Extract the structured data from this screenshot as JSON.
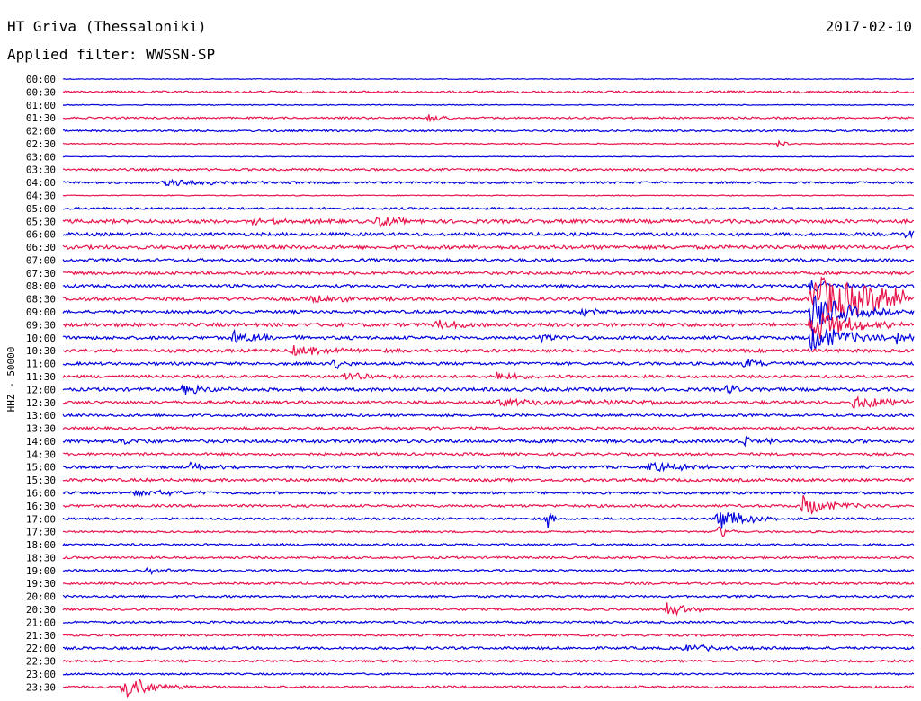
{
  "header": {
    "station": "HT Griva (Thessaloniki)",
    "date": "2017-02-10",
    "filter": "Applied filter: WWSSN-SP"
  },
  "colors": {
    "odd": "#e8134b",
    "even": "#0000dd"
  },
  "chart_data": {
    "type": "line",
    "title": "HT Griva (Thessaloniki)",
    "ylabel": "HHZ - 50000",
    "rows": [
      "00:00",
      "00:30",
      "01:00",
      "01:30",
      "02:00",
      "02:30",
      "03:00",
      "03:30",
      "04:00",
      "04:30",
      "05:00",
      "05:30",
      "06:00",
      "06:30",
      "07:00",
      "07:30",
      "08:00",
      "08:30",
      "09:00",
      "09:30",
      "10:00",
      "10:30",
      "11:00",
      "11:30",
      "12:00",
      "12:30",
      "13:00",
      "13:30",
      "14:00",
      "14:30",
      "15:00",
      "15:30",
      "16:00",
      "16:30",
      "17:00",
      "17:30",
      "18:00",
      "18:30",
      "19:00",
      "19:30",
      "20:00",
      "20:30",
      "21:00",
      "21:30",
      "22:00",
      "22:30",
      "23:00",
      "23:30"
    ],
    "row_noise": [
      0.4,
      1.2,
      0.5,
      1.0,
      1.0,
      0.6,
      0.4,
      1.2,
      1.2,
      0.5,
      1.2,
      2.0,
      1.8,
      2.0,
      1.6,
      1.6,
      1.6,
      1.8,
      1.6,
      2.0,
      1.8,
      1.8,
      1.6,
      1.6,
      1.8,
      1.6,
      1.4,
      1.4,
      1.8,
      1.4,
      1.6,
      1.6,
      1.4,
      1.4,
      1.2,
      1.0,
      1.2,
      1.2,
      1.2,
      1.2,
      1.2,
      1.2,
      1.2,
      1.2,
      1.4,
      1.2,
      1.0,
      1.2
    ],
    "events": [
      {
        "row": 3,
        "t": 0.43,
        "amp": 5,
        "dur": 0.02
      },
      {
        "row": 5,
        "t": 0.84,
        "amp": 5,
        "dur": 0.01
      },
      {
        "row": 8,
        "t": 0.12,
        "amp": 4,
        "dur": 0.06
      },
      {
        "row": 11,
        "t": 0.37,
        "amp": 7,
        "dur": 0.02
      },
      {
        "row": 11,
        "t": 0.22,
        "amp": 4,
        "dur": 0.04
      },
      {
        "row": 12,
        "t": 0.99,
        "amp": 6,
        "dur": 0.02
      },
      {
        "row": 16,
        "t": 0.88,
        "amp": 8,
        "dur": 0.03
      },
      {
        "row": 17,
        "t": 0.88,
        "amp": 26,
        "dur": 0.12
      },
      {
        "row": 17,
        "t": 0.29,
        "amp": 5,
        "dur": 0.04
      },
      {
        "row": 18,
        "t": 0.88,
        "amp": 22,
        "dur": 0.04
      },
      {
        "row": 18,
        "t": 0.61,
        "amp": 6,
        "dur": 0.02
      },
      {
        "row": 19,
        "t": 0.88,
        "amp": 20,
        "dur": 0.04
      },
      {
        "row": 19,
        "t": 0.44,
        "amp": 5,
        "dur": 0.03
      },
      {
        "row": 20,
        "t": 0.2,
        "amp": 8,
        "dur": 0.03
      },
      {
        "row": 20,
        "t": 0.88,
        "amp": 16,
        "dur": 0.04
      },
      {
        "row": 20,
        "t": 0.56,
        "amp": 5,
        "dur": 0.02
      },
      {
        "row": 20,
        "t": 0.98,
        "amp": 6,
        "dur": 0.01
      },
      {
        "row": 21,
        "t": 0.27,
        "amp": 5,
        "dur": 0.06
      },
      {
        "row": 22,
        "t": 0.32,
        "amp": 8,
        "dur": 0.01
      },
      {
        "row": 22,
        "t": 0.8,
        "amp": 5,
        "dur": 0.03
      },
      {
        "row": 23,
        "t": 0.51,
        "amp": 6,
        "dur": 0.02
      },
      {
        "row": 23,
        "t": 0.33,
        "amp": 4,
        "dur": 0.04
      },
      {
        "row": 24,
        "t": 0.14,
        "amp": 5,
        "dur": 0.04
      },
      {
        "row": 24,
        "t": 0.78,
        "amp": 5,
        "dur": 0.02
      },
      {
        "row": 25,
        "t": 0.93,
        "amp": 7,
        "dur": 0.06
      },
      {
        "row": 25,
        "t": 0.51,
        "amp": 4,
        "dur": 0.12
      },
      {
        "row": 27,
        "t": 0.43,
        "amp": 4,
        "dur": 0.01
      },
      {
        "row": 28,
        "t": 0.8,
        "amp": 6,
        "dur": 0.02
      },
      {
        "row": 28,
        "t": 0.07,
        "amp": 4,
        "dur": 0.02
      },
      {
        "row": 30,
        "t": 0.69,
        "amp": 5,
        "dur": 0.06
      },
      {
        "row": 30,
        "t": 0.15,
        "amp": 4,
        "dur": 0.03
      },
      {
        "row": 32,
        "t": 0.08,
        "amp": 3,
        "dur": 0.07
      },
      {
        "row": 33,
        "t": 0.87,
        "amp": 12,
        "dur": 0.03
      },
      {
        "row": 34,
        "t": 0.77,
        "amp": 14,
        "dur": 0.03
      },
      {
        "row": 34,
        "t": 0.57,
        "amp": 16,
        "dur": 0.004
      },
      {
        "row": 35,
        "t": 0.77,
        "amp": 10,
        "dur": 0.01
      },
      {
        "row": 38,
        "t": 0.1,
        "amp": 3,
        "dur": 0.02
      },
      {
        "row": 41,
        "t": 0.71,
        "amp": 7,
        "dur": 0.03
      },
      {
        "row": 44,
        "t": 0.73,
        "amp": 4,
        "dur": 0.04
      },
      {
        "row": 47,
        "t": 0.07,
        "amp": 16,
        "dur": 0.03
      }
    ]
  }
}
